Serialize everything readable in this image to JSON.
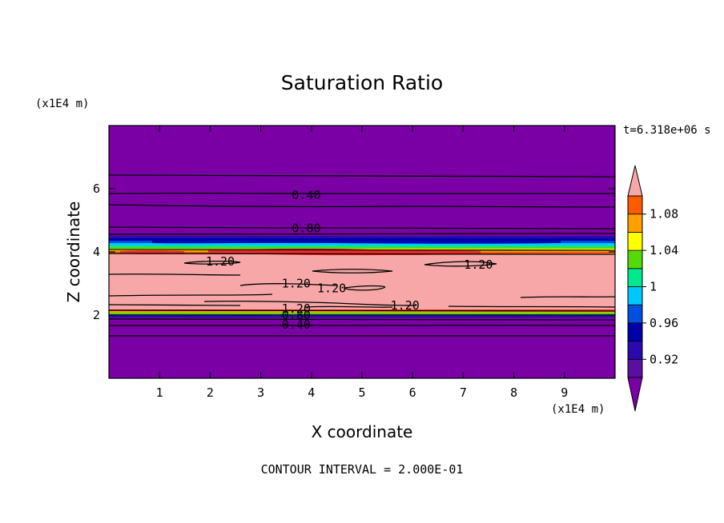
{
  "chart_data": {
    "type": "heatmap",
    "title": "Saturation Ratio",
    "xlabel": "X coordinate",
    "ylabel": "Z coordinate",
    "x_unit": "(x1E4 m)",
    "y_unit": "(x1E4 m)",
    "xlim": [
      0,
      10
    ],
    "ylim": [
      0,
      8
    ],
    "x_ticks": [
      "1",
      "2",
      "3",
      "4",
      "5",
      "6",
      "7",
      "8",
      "9"
    ],
    "y_ticks": [
      "2",
      "4",
      "6"
    ],
    "time_label": "t=6.318e+06 s",
    "contour_interval": "CONTOUR INTERVAL = 2.000E-01",
    "grid": false,
    "colorbar": {
      "labels": [
        "0.92",
        "0.96",
        "1",
        "1.04",
        "1.08"
      ],
      "levels": [
        0.9,
        0.92,
        0.94,
        0.96,
        0.98,
        1.0,
        1.02,
        1.04,
        1.06,
        1.08,
        1.1
      ],
      "colors": [
        "#5a0fa0",
        "#2a0ab0",
        "#0000a8",
        "#0050e0",
        "#00c8ff",
        "#00e890",
        "#58d808",
        "#ffff00",
        "#ffa000",
        "#ff5a00",
        "#f02828"
      ],
      "under_color": "#7a00a6",
      "over_color": "#f7a7a7"
    },
    "contour_labels": [
      {
        "text": "0.40",
        "x": 3.9,
        "z": 5.8
      },
      {
        "text": "0.80",
        "x": 3.9,
        "z": 4.75
      },
      {
        "text": "1.20",
        "x": 2.2,
        "z": 3.7
      },
      {
        "text": "1.20",
        "x": 7.3,
        "z": 3.6
      },
      {
        "text": "1.20",
        "x": 3.7,
        "z": 3.0
      },
      {
        "text": "1.20",
        "x": 4.4,
        "z": 2.85
      },
      {
        "text": "1.20",
        "x": 5.85,
        "z": 2.3
      },
      {
        "text": "1.20",
        "x": 3.7,
        "z": 2.2
      },
      {
        "text": "0.80",
        "x": 3.7,
        "z": 2.0
      },
      {
        "text": "0.40",
        "x": 3.7,
        "z": 1.7
      }
    ]
  }
}
